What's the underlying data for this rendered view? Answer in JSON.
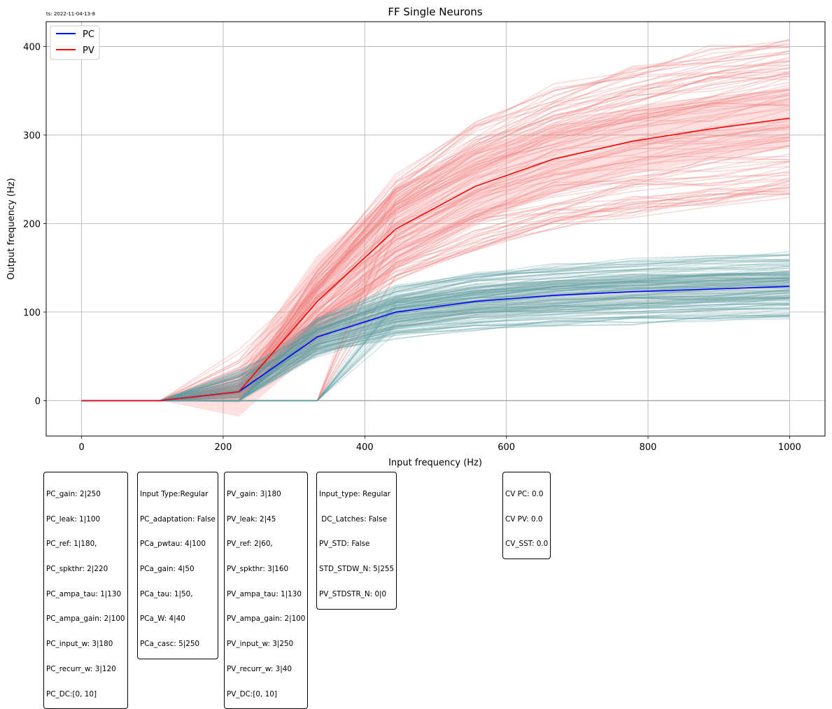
{
  "timestamp": "ts: 2022-11-04-13-8",
  "chart_data": {
    "type": "line",
    "title": "FF Single Neurons",
    "xlabel": "Input frequency (Hz)",
    "ylabel": "Output frequency (Hz)",
    "xlim": [
      -50,
      1050
    ],
    "ylim": [
      -40,
      428
    ],
    "xticks": [
      0,
      200,
      400,
      600,
      800,
      1000
    ],
    "yticks": [
      0,
      100,
      200,
      300,
      400
    ],
    "grid": true,
    "legend_position": "top-left",
    "x": [
      0,
      111,
      222,
      333,
      444,
      556,
      667,
      778,
      889,
      1000
    ],
    "series": [
      {
        "name": "PC",
        "color": "#0000ff",
        "values": [
          0,
          0,
          10,
          72,
          100,
          112,
          119,
          123,
          126,
          129
        ]
      },
      {
        "name": "PV",
        "color": "#ff0000",
        "values": [
          0,
          0,
          10,
          112,
          194,
          242,
          273,
          293,
          307,
          319
        ]
      }
    ],
    "pc_individual_color": "#5f9ea0",
    "pv_individual_color": "#f08080",
    "pc_std_band": {
      "lower": [
        0,
        0,
        -2,
        50,
        82,
        95,
        102,
        107,
        110,
        113
      ],
      "upper": [
        0,
        0,
        22,
        94,
        118,
        129,
        136,
        139,
        142,
        145
      ]
    },
    "pv_std_band": {
      "lower": [
        0,
        0,
        -18,
        60,
        150,
        200,
        234,
        256,
        272,
        285
      ],
      "upper": [
        0,
        0,
        38,
        164,
        238,
        284,
        312,
        330,
        342,
        353
      ]
    }
  },
  "info_boxes": [
    {
      "lines": [
        "PC_gain: 2|250",
        "PC_leak: 1|100",
        "PC_ref: 1|180,",
        "PC_spkthr: 2|220",
        "PC_ampa_tau: 1|130",
        "PC_ampa_gain: 2|100",
        "PC_input_w: 3|180",
        "PC_recurr_w: 3|120",
        "PC_DC:[0, 10]"
      ]
    },
    {
      "lines": [
        "Input Type:Regular",
        "PC_adaptation: False",
        "PCa_pwtau: 4|100",
        "PCa_gain: 4|50",
        "PCa_tau: 1|50,",
        "PCa_W: 4|40",
        "PCa_casc: 5|250"
      ]
    },
    {
      "lines": [
        "PV_gain: 3|180",
        "PV_leak: 2|45",
        "PV_ref: 2|60,",
        "PV_spkthr: 3|160",
        "PV_ampa_tau: 1|130",
        "PV_ampa_gain: 2|100",
        "PV_input_w: 3|250",
        "PV_recurr_w: 3|40",
        "PV_DC:[0, 10]"
      ]
    },
    {
      "lines": [
        "Input_type: Regular",
        " DC_Latches: False",
        "PV_STD: False",
        "STD_STDW_N: 5|255",
        "PV_STDSTR_N: 0|0"
      ]
    },
    {
      "lines": [
        "CV PC: 0.0",
        "CV PV: 0.0",
        "CV_SST: 0.0"
      ]
    }
  ]
}
